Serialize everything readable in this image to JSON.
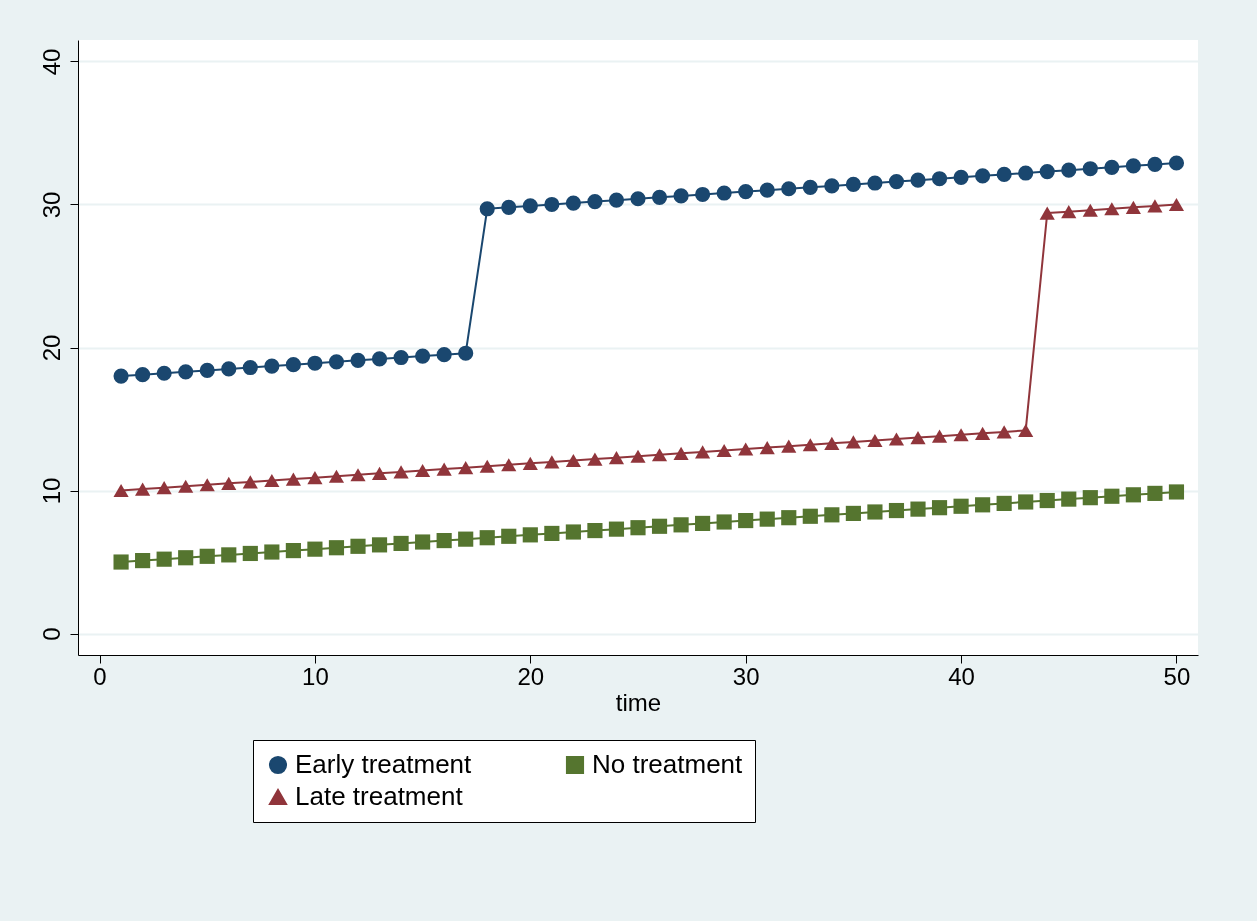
{
  "chart_data": {
    "type": "line",
    "xlabel": "time",
    "x": [
      1,
      2,
      3,
      4,
      5,
      6,
      7,
      8,
      9,
      10,
      11,
      12,
      13,
      14,
      15,
      16,
      17,
      18,
      19,
      20,
      21,
      22,
      23,
      24,
      25,
      26,
      27,
      28,
      29,
      30,
      31,
      32,
      33,
      34,
      35,
      36,
      37,
      38,
      39,
      40,
      41,
      42,
      43,
      44,
      45,
      46,
      47,
      48,
      49,
      50
    ],
    "series": [
      {
        "name": "Early treatment",
        "color": "#1a476f",
        "marker": "circle",
        "values": [
          18.0,
          18.1,
          18.2,
          18.3,
          18.4,
          18.5,
          18.6,
          18.7,
          18.8,
          18.9,
          19.0,
          19.1,
          19.2,
          19.3,
          19.4,
          19.5,
          19.6,
          29.7,
          29.8,
          29.9,
          30.0,
          30.1,
          30.2,
          30.3,
          30.4,
          30.5,
          30.6,
          30.7,
          30.8,
          30.9,
          31.0,
          31.1,
          31.2,
          31.3,
          31.4,
          31.5,
          31.6,
          31.7,
          31.8,
          31.9,
          32.0,
          32.1,
          32.2,
          32.3,
          32.4,
          32.5,
          32.6,
          32.7,
          32.8,
          32.9
        ]
      },
      {
        "name": "Late treatment",
        "color": "#90353b",
        "marker": "triangle",
        "values": [
          10.0,
          10.1,
          10.2,
          10.3,
          10.4,
          10.5,
          10.6,
          10.7,
          10.8,
          10.9,
          11.0,
          11.1,
          11.2,
          11.3,
          11.4,
          11.5,
          11.6,
          11.7,
          11.8,
          11.9,
          12.0,
          12.1,
          12.2,
          12.3,
          12.4,
          12.5,
          12.6,
          12.7,
          12.8,
          12.9,
          13.0,
          13.1,
          13.2,
          13.3,
          13.4,
          13.5,
          13.6,
          13.7,
          13.8,
          13.9,
          14.0,
          14.1,
          14.2,
          29.4,
          29.5,
          29.6,
          29.7,
          29.8,
          29.9,
          30.0
        ]
      },
      {
        "name": "No treatment",
        "color": "#55752f",
        "marker": "square",
        "values": [
          5.0,
          5.1,
          5.2,
          5.3,
          5.4,
          5.5,
          5.6,
          5.7,
          5.8,
          5.9,
          6.0,
          6.1,
          6.2,
          6.3,
          6.4,
          6.5,
          6.6,
          6.7,
          6.8,
          6.9,
          7.0,
          7.1,
          7.2,
          7.3,
          7.4,
          7.5,
          7.6,
          7.7,
          7.8,
          7.9,
          8.0,
          8.1,
          8.2,
          8.3,
          8.4,
          8.5,
          8.6,
          8.7,
          8.8,
          8.9,
          9.0,
          9.1,
          9.2,
          9.3,
          9.4,
          9.5,
          9.6,
          9.7,
          9.8,
          9.9
        ]
      }
    ],
    "xlim": [
      -1,
      51
    ],
    "ylim": [
      -1.5,
      41.5
    ],
    "xticks": [
      0,
      10,
      20,
      30,
      40,
      50
    ],
    "yticks": [
      0,
      10,
      20,
      30,
      40
    ],
    "grid": "y",
    "legend": "bottom",
    "line_style": "solid"
  }
}
